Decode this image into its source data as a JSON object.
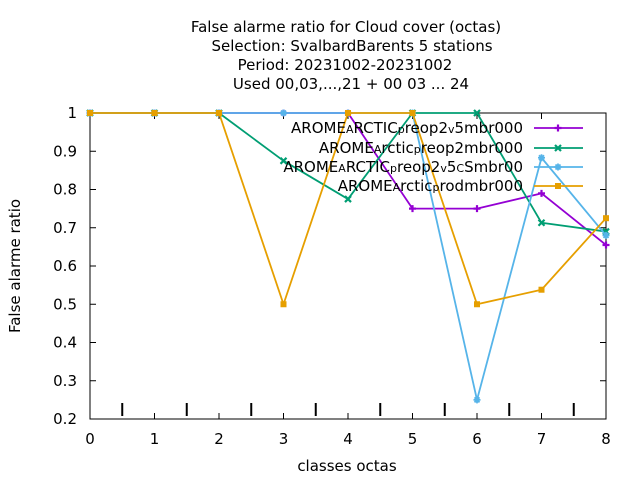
{
  "chart_data": {
    "type": "line",
    "title_lines": [
      "False alarme ratio  for Cloud cover (octas)",
      "Selection: SvalbardBarents       5 stations",
      "Period: 20231002-20231002",
      "Used  00,03,...,21  + 00 03 ... 24"
    ],
    "xlabel": "classes octas",
    "ylabel": "False alarme ratio",
    "xlim": [
      0,
      8
    ],
    "ylim": [
      0.2,
      1.0
    ],
    "x_ticks": [
      "0",
      "1",
      "2",
      "3",
      "4",
      "5",
      "6",
      "7",
      "8"
    ],
    "y_ticks": [
      "0.2",
      "0.3",
      "0.4",
      "0.5",
      "0.6",
      "0.7",
      "0.8",
      "0.9",
      "1"
    ],
    "bottom_marks_x": [
      0.5,
      1.5,
      2.5,
      3.5,
      4.5,
      5.5,
      6.5,
      7.5
    ],
    "grid": false,
    "legend_position": "top-right",
    "series": [
      {
        "legend": [
          [
            "AROME",
            ""
          ],
          [
            "A",
            "sub"
          ],
          [
            "RCTIC",
            ""
          ],
          [
            "p",
            "sub"
          ],
          [
            "reop2",
            ""
          ],
          [
            "v",
            "sub"
          ],
          [
            "5mbr000",
            ""
          ]
        ],
        "color": "#9400d3",
        "marker": "plus",
        "x": [
          0,
          1,
          2,
          3,
          4,
          5,
          6,
          7,
          8
        ],
        "values": [
          1.0,
          1.0,
          1.0,
          1.0,
          1.0,
          0.75,
          0.75,
          0.79,
          0.655
        ]
      },
      {
        "legend": [
          [
            "AROME",
            ""
          ],
          [
            "A",
            "sub"
          ],
          [
            "rctic",
            ""
          ],
          [
            "p",
            "sub"
          ],
          [
            "reop2mbr000",
            ""
          ]
        ],
        "color": "#009e73",
        "marker": "x",
        "x": [
          0,
          1,
          2,
          3,
          4,
          5,
          6,
          7,
          8
        ],
        "values": [
          1.0,
          1.0,
          1.0,
          0.875,
          0.775,
          1.0,
          1.0,
          0.713,
          0.69
        ]
      },
      {
        "legend": [
          [
            "AROME",
            ""
          ],
          [
            "A",
            "sub"
          ],
          [
            "RCTIC",
            ""
          ],
          [
            "p",
            "sub"
          ],
          [
            "reop2",
            ""
          ],
          [
            "v",
            "sub"
          ],
          [
            "5",
            ""
          ],
          [
            "C",
            "sub"
          ],
          [
            "Smbr00",
            ""
          ]
        ],
        "color": "#56b4e9",
        "marker": "star",
        "x": [
          0,
          1,
          2,
          3,
          4,
          5,
          6,
          7,
          8
        ],
        "values": [
          1.0,
          1.0,
          1.0,
          1.0,
          1.0,
          1.0,
          0.25,
          0.883,
          0.68
        ]
      },
      {
        "legend": [
          [
            "AROME",
            ""
          ],
          [
            "A",
            "sub"
          ],
          [
            "rctic",
            ""
          ],
          [
            "p",
            "sub"
          ],
          [
            "rodmbr000",
            ""
          ]
        ],
        "color": "#e69f00",
        "marker": "square",
        "x": [
          0,
          1,
          2,
          3,
          4,
          5,
          6,
          7,
          8
        ],
        "values": [
          1.0,
          1.0,
          1.0,
          0.5,
          1.0,
          1.0,
          0.5,
          0.538,
          0.725
        ]
      }
    ]
  }
}
